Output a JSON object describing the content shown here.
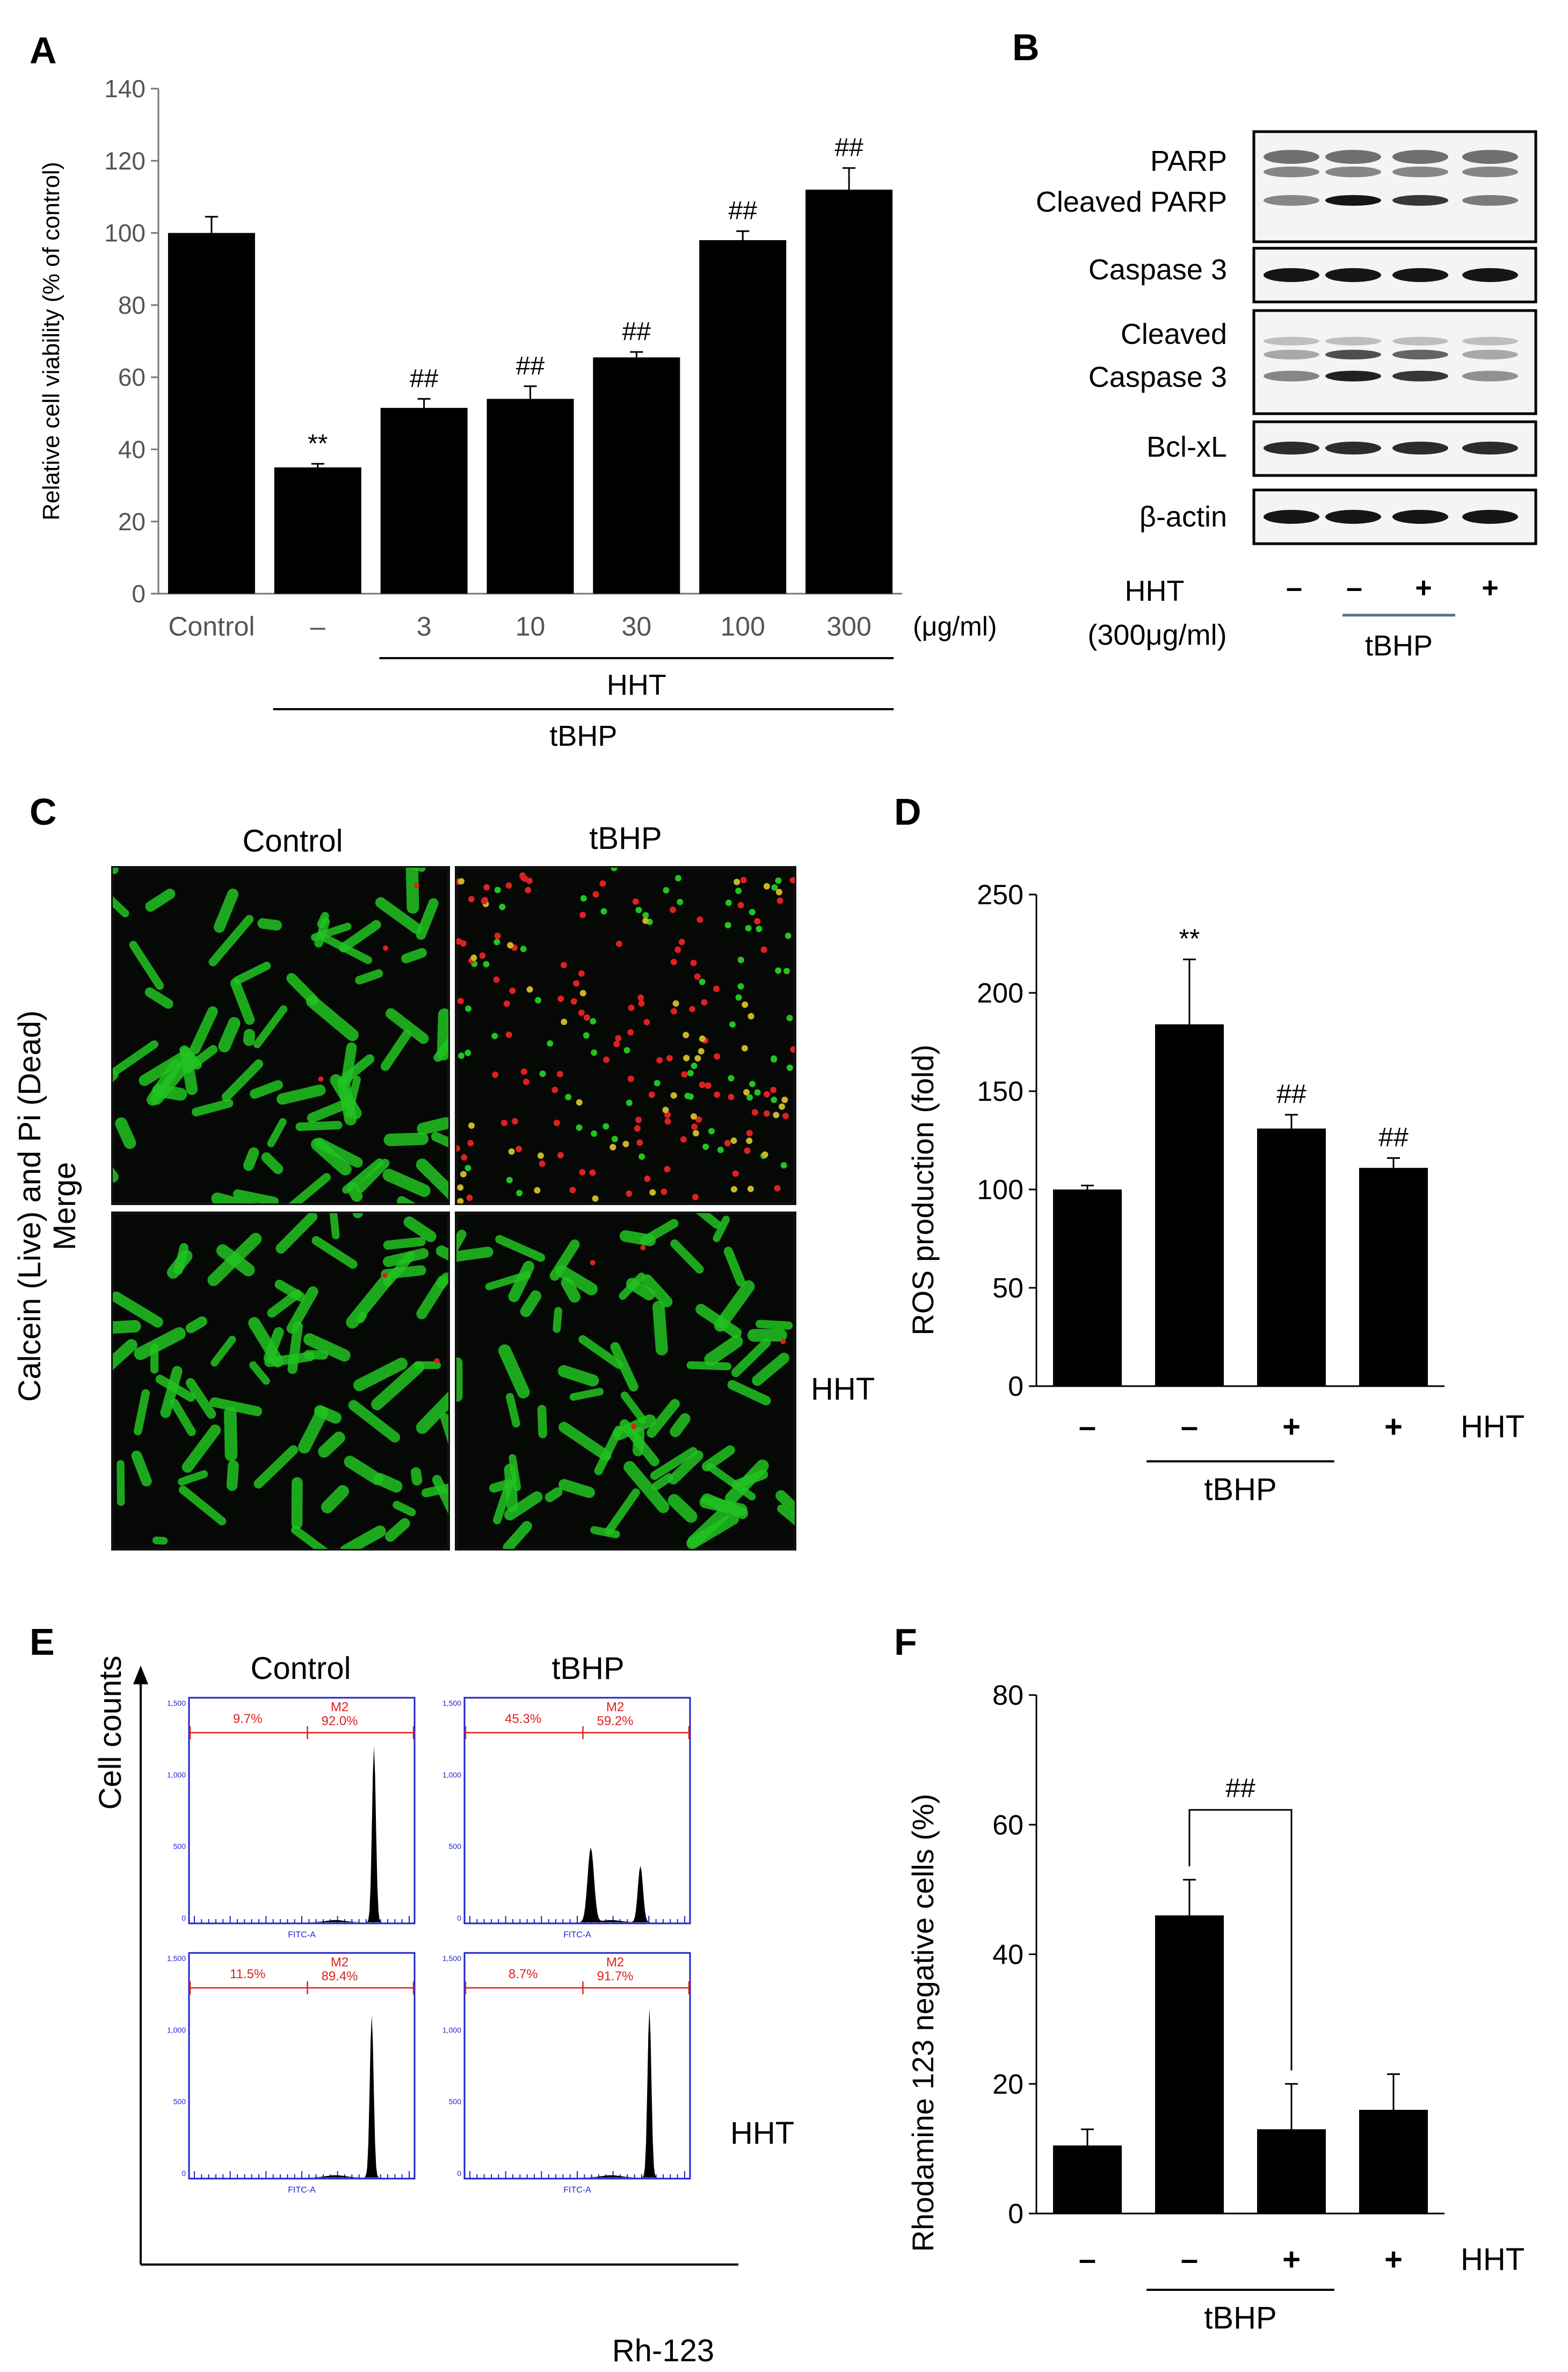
{
  "panels": {
    "A": {
      "letter": "A"
    },
    "B": {
      "letter": "B"
    },
    "C": {
      "letter": "C"
    },
    "D": {
      "letter": "D"
    },
    "E": {
      "letter": "E"
    },
    "F": {
      "letter": "F"
    }
  },
  "chart_data": [
    {
      "panel": "A",
      "type": "bar",
      "ylabel": "Relative cell viability  (% of control)",
      "ylim": [
        0,
        140
      ],
      "yticks": [
        0,
        20,
        40,
        60,
        80,
        100,
        120,
        140
      ],
      "categories": [
        "Control",
        "–",
        "3",
        "10",
        "30",
        "100",
        "300"
      ],
      "values": [
        100,
        35,
        51.5,
        54,
        65.5,
        98,
        112
      ],
      "errors": [
        4.5,
        1,
        2.5,
        3.5,
        1.5,
        2.5,
        6
      ],
      "annotations": [
        "",
        "**",
        "##",
        "##",
        "##",
        "##",
        "##"
      ],
      "unit_label": "(μg/ml)",
      "groups": [
        {
          "label": "HHT",
          "from": 2,
          "to": 6
        },
        {
          "label": "tBHP",
          "from": 1,
          "to": 6
        }
      ],
      "bar_color": "#000000",
      "grid": false
    },
    {
      "panel": "D",
      "type": "bar",
      "ylabel": "ROS production (fold)",
      "ylim": [
        0,
        250
      ],
      "yticks": [
        0,
        50,
        100,
        150,
        200,
        250
      ],
      "categories": [
        "–",
        "–",
        "+",
        "+"
      ],
      "values": [
        100,
        184,
        131,
        111
      ],
      "errors": [
        2,
        33,
        7,
        5
      ],
      "annotations": [
        "",
        "**",
        "##",
        "##"
      ],
      "row_label": "HHT",
      "groups": [
        {
          "label": "tBHP",
          "from": 1,
          "to": 2
        }
      ],
      "bar_color": "#000000",
      "grid": false
    },
    {
      "panel": "F",
      "type": "bar",
      "ylabel": "Rhodamine 123 negative cells (%)",
      "ylim": [
        0,
        80
      ],
      "yticks": [
        0,
        20,
        40,
        60,
        80
      ],
      "categories": [
        "–",
        "–",
        "+",
        "+"
      ],
      "values": [
        10.5,
        46,
        13,
        16
      ],
      "errors": [
        2.5,
        5.5,
        7,
        5.5
      ],
      "annotations": [
        "",
        "",
        "",
        ""
      ],
      "bracket": {
        "from": 1,
        "to": 2,
        "label": "##"
      },
      "row_label": "HHT",
      "groups": [
        {
          "label": "tBHP",
          "from": 1,
          "to": 2
        }
      ],
      "bar_color": "#000000",
      "grid": false
    }
  ],
  "blot": {
    "bands": [
      "PARP",
      "Cleaved PARP",
      "Caspase 3",
      "Cleaved",
      "Caspase 3",
      "Bcl-xL",
      "β-actin"
    ],
    "treatment_label_1": "HHT",
    "treatment_label_2": "(300μg/ml)",
    "lanes": [
      "–",
      "–",
      "+",
      "+"
    ],
    "group_label": "tBHP"
  },
  "micrographs": {
    "col_control": "Control",
    "col_tbhp": "tBHP",
    "row_label_1": "Calcein (Live) and Pi (Dead)",
    "row_label_2": "Merge",
    "side_label": "HHT",
    "live_color": "#22c322",
    "dead_color": "#e02020"
  },
  "flow": {
    "col_control": "Control",
    "col_tbhp": "tBHP",
    "y_axis": "Cell counts",
    "x_axis": "Rh-123",
    "side_label": "HHT",
    "gate_color": "#e02020",
    "frame_color": "#2222cc",
    "yticks": [
      "0",
      "500",
      "1,000",
      "1,500"
    ],
    "xaxis_name": "FITC-A",
    "gate_name": "M2",
    "histograms": [
      {
        "left": "9.7%",
        "right": "92.0%"
      },
      {
        "left": "45.3%",
        "right": "59.2%"
      },
      {
        "left": "11.5%",
        "right": "89.4%"
      },
      {
        "left": "8.7%",
        "right": "91.7%"
      }
    ]
  }
}
